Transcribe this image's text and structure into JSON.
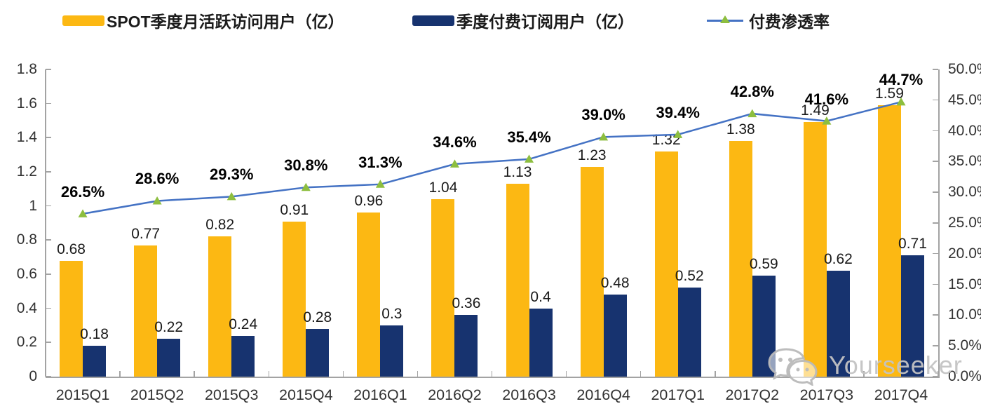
{
  "legend": {
    "items": [
      {
        "label": "SPOT季度月活跃访问用户（亿）",
        "type": "bar",
        "color": "#FCB813"
      },
      {
        "label": "季度付费订阅用户（亿）",
        "type": "bar",
        "color": "#17336F"
      },
      {
        "label": "付费渗透率",
        "type": "line",
        "color": "#4472C4",
        "marker_color": "#8DBE3F"
      }
    ]
  },
  "chart_data": {
    "type": "bar",
    "subtype": "grouped-bars-with-line-combo",
    "categories": [
      "2015Q1",
      "2015Q2",
      "2015Q3",
      "2015Q4",
      "2016Q1",
      "2016Q2",
      "2016Q3",
      "2016Q4",
      "2017Q1",
      "2017Q2",
      "2017Q3",
      "2017Q4"
    ],
    "series": [
      {
        "name": "SPOT季度月活跃访问用户（亿）",
        "type": "bar",
        "axis": "left",
        "color": "#FCB813",
        "values": [
          0.68,
          0.77,
          0.82,
          0.91,
          0.96,
          1.04,
          1.13,
          1.23,
          1.32,
          1.38,
          1.49,
          1.59
        ],
        "labels": [
          "0.68",
          "0.77",
          "0.82",
          "0.91",
          "0.96",
          "1.04",
          "1.13",
          "1.23",
          "1.32",
          "1.38",
          "1.49",
          "1.59"
        ]
      },
      {
        "name": "季度付费订阅用户（亿）",
        "type": "bar",
        "axis": "left",
        "color": "#17336F",
        "values": [
          0.18,
          0.22,
          0.24,
          0.28,
          0.3,
          0.36,
          0.4,
          0.48,
          0.52,
          0.59,
          0.62,
          0.71
        ],
        "labels": [
          "0.18",
          "0.22",
          "0.24",
          "0.28",
          "0.3",
          "0.36",
          "0.4",
          "0.48",
          "0.52",
          "0.59",
          "0.62",
          "0.71"
        ]
      },
      {
        "name": "付费渗透率",
        "type": "line",
        "axis": "right",
        "color": "#4472C4",
        "marker": "triangle",
        "marker_color": "#8DBE3F",
        "values": [
          26.5,
          28.6,
          29.3,
          30.8,
          31.3,
          34.6,
          35.4,
          39.0,
          39.4,
          42.8,
          41.6,
          44.7
        ],
        "labels": [
          "26.5%",
          "28.6%",
          "29.3%",
          "30.8%",
          "31.3%",
          "34.6%",
          "35.4%",
          "39.0%",
          "39.4%",
          "42.8%",
          "41.6%",
          "44.7%"
        ]
      }
    ],
    "left_axis": {
      "min": 0,
      "max": 1.8,
      "step": 0.2,
      "ticks": [
        "0",
        "0.2",
        "0.4",
        "0.6",
        "0.8",
        "1",
        "1.2",
        "1.4",
        "1.6",
        "1.8"
      ]
    },
    "right_axis": {
      "min": 0,
      "max": 50,
      "step": 5,
      "ticks": [
        "0.0%",
        "5.0%",
        "10.0%",
        "15.0%",
        "20.0%",
        "25.0%",
        "30.0%",
        "35.0%",
        "40.0%",
        "45.0%",
        "50.0%"
      ]
    },
    "grid": false,
    "legend_position": "top"
  },
  "watermark": {
    "text": "Yourseeker",
    "icon": "wechat-icon"
  }
}
